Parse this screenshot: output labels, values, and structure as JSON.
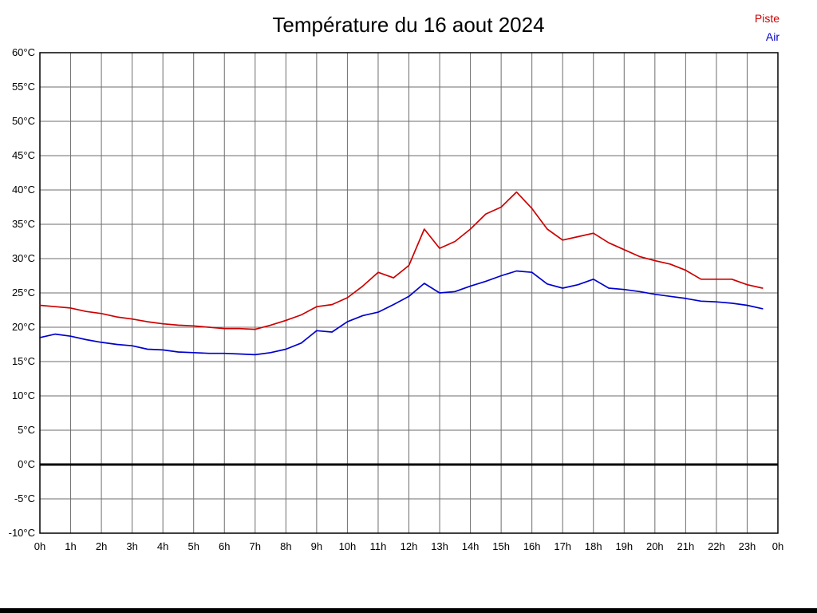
{
  "chart_data": {
    "type": "line",
    "title": "Température du 16 aout 2024",
    "xlabel": "",
    "ylabel": "",
    "xlim": [
      0,
      24
    ],
    "ylim": [
      -10,
      60
    ],
    "grid": true,
    "zero_line": true,
    "legend_position": "top-right",
    "x_tick_labels": [
      "0h",
      "1h",
      "2h",
      "3h",
      "4h",
      "5h",
      "6h",
      "7h",
      "8h",
      "9h",
      "10h",
      "11h",
      "12h",
      "13h",
      "14h",
      "15h",
      "16h",
      "17h",
      "18h",
      "19h",
      "20h",
      "21h",
      "22h",
      "23h",
      "0h"
    ],
    "y_tick_labels": [
      "60°C",
      "55°C",
      "50°C",
      "45°C",
      "40°C",
      "35°C",
      "30°C",
      "25°C",
      "20°C",
      "15°C",
      "10°C",
      "5°C",
      "0°C",
      "-5°C",
      "-10°C"
    ],
    "series": [
      {
        "name": "Piste",
        "color": "#cc0000",
        "points": [
          [
            0,
            23.2
          ],
          [
            0.5,
            23.0
          ],
          [
            1,
            22.8
          ],
          [
            1.5,
            22.3
          ],
          [
            2,
            22.0
          ],
          [
            2.5,
            21.5
          ],
          [
            3,
            21.2
          ],
          [
            3.5,
            20.8
          ],
          [
            4,
            20.5
          ],
          [
            4.5,
            20.3
          ],
          [
            5,
            20.2
          ],
          [
            5.5,
            20.0
          ],
          [
            6,
            19.8
          ],
          [
            6.5,
            19.8
          ],
          [
            7,
            19.7
          ],
          [
            7.5,
            20.3
          ],
          [
            8,
            21.0
          ],
          [
            8.5,
            21.8
          ],
          [
            9,
            23.0
          ],
          [
            9.5,
            23.3
          ],
          [
            10,
            24.3
          ],
          [
            10.5,
            26.0
          ],
          [
            11,
            28.0
          ],
          [
            11.5,
            27.2
          ],
          [
            12,
            29.0
          ],
          [
            12.5,
            34.3
          ],
          [
            13,
            31.5
          ],
          [
            13.5,
            32.5
          ],
          [
            14,
            34.3
          ],
          [
            14.5,
            36.5
          ],
          [
            15,
            37.5
          ],
          [
            15.5,
            39.7
          ],
          [
            16,
            37.3
          ],
          [
            16.5,
            34.3
          ],
          [
            17,
            32.7
          ],
          [
            17.5,
            33.2
          ],
          [
            18,
            33.7
          ],
          [
            18.5,
            32.3
          ],
          [
            19,
            31.3
          ],
          [
            19.5,
            30.3
          ],
          [
            20,
            29.7
          ],
          [
            20.5,
            29.2
          ],
          [
            21,
            28.3
          ],
          [
            21.5,
            27.0
          ],
          [
            22,
            27.0
          ],
          [
            22.5,
            27.0
          ],
          [
            23,
            26.2
          ],
          [
            23.5,
            25.7
          ]
        ]
      },
      {
        "name": "Air",
        "color": "#0000cc",
        "points": [
          [
            0,
            18.5
          ],
          [
            0.5,
            19.0
          ],
          [
            1,
            18.7
          ],
          [
            1.5,
            18.2
          ],
          [
            2,
            17.8
          ],
          [
            2.5,
            17.5
          ],
          [
            3,
            17.3
          ],
          [
            3.5,
            16.8
          ],
          [
            4,
            16.7
          ],
          [
            4.5,
            16.4
          ],
          [
            5,
            16.3
          ],
          [
            5.5,
            16.2
          ],
          [
            6,
            16.2
          ],
          [
            6.5,
            16.1
          ],
          [
            7,
            16.0
          ],
          [
            7.5,
            16.3
          ],
          [
            8,
            16.8
          ],
          [
            8.5,
            17.7
          ],
          [
            9,
            19.5
          ],
          [
            9.5,
            19.3
          ],
          [
            10,
            20.8
          ],
          [
            10.5,
            21.7
          ],
          [
            11,
            22.2
          ],
          [
            11.5,
            23.3
          ],
          [
            12,
            24.5
          ],
          [
            12.5,
            26.4
          ],
          [
            13,
            25.0
          ],
          [
            13.5,
            25.2
          ],
          [
            14,
            26.0
          ],
          [
            14.5,
            26.7
          ],
          [
            15,
            27.5
          ],
          [
            15.5,
            28.2
          ],
          [
            16,
            28.0
          ],
          [
            16.5,
            26.3
          ],
          [
            17,
            25.7
          ],
          [
            17.5,
            26.2
          ],
          [
            18,
            27.0
          ],
          [
            18.5,
            25.7
          ],
          [
            19,
            25.5
          ],
          [
            19.5,
            25.2
          ],
          [
            20,
            24.8
          ],
          [
            20.5,
            24.5
          ],
          [
            21,
            24.2
          ],
          [
            21.5,
            23.8
          ],
          [
            22,
            23.7
          ],
          [
            22.5,
            23.5
          ],
          [
            23,
            23.2
          ],
          [
            23.5,
            22.7
          ]
        ]
      }
    ]
  }
}
